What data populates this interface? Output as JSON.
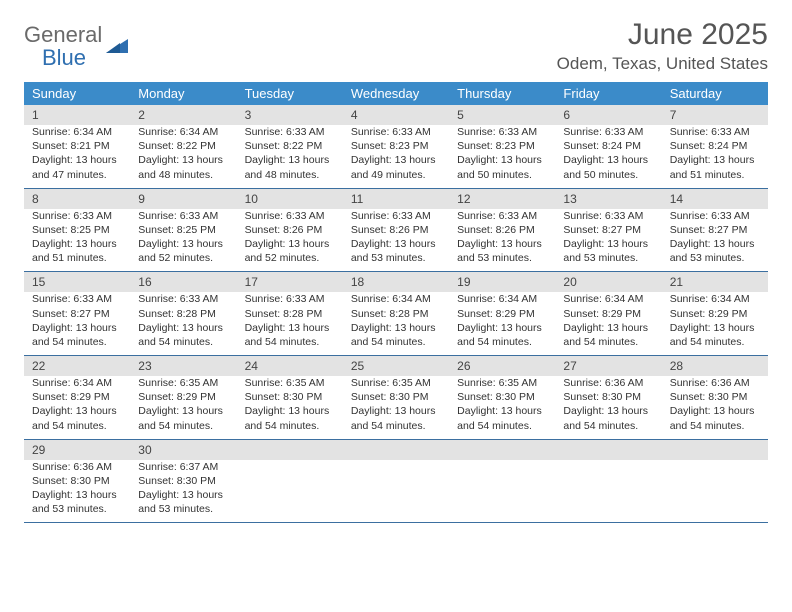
{
  "brand": {
    "word1": "General",
    "word2": "Blue"
  },
  "title": "June 2025",
  "location": "Odem, Texas, United States",
  "colors": {
    "header_bg": "#3b8bc9",
    "header_text": "#ffffff",
    "daynum_bg": "#e3e3e3",
    "week_border": "#3b6fa0",
    "body_text": "#333333",
    "title_text": "#555555",
    "logo_gray": "#6a6a6a",
    "logo_blue": "#2f6fb0"
  },
  "daysOfWeek": [
    "Sunday",
    "Monday",
    "Tuesday",
    "Wednesday",
    "Thursday",
    "Friday",
    "Saturday"
  ],
  "weeks": [
    [
      {
        "n": "1",
        "sr": "6:34 AM",
        "ss": "8:21 PM",
        "dl": "13 hours and 47 minutes."
      },
      {
        "n": "2",
        "sr": "6:34 AM",
        "ss": "8:22 PM",
        "dl": "13 hours and 48 minutes."
      },
      {
        "n": "3",
        "sr": "6:33 AM",
        "ss": "8:22 PM",
        "dl": "13 hours and 48 minutes."
      },
      {
        "n": "4",
        "sr": "6:33 AM",
        "ss": "8:23 PM",
        "dl": "13 hours and 49 minutes."
      },
      {
        "n": "5",
        "sr": "6:33 AM",
        "ss": "8:23 PM",
        "dl": "13 hours and 50 minutes."
      },
      {
        "n": "6",
        "sr": "6:33 AM",
        "ss": "8:24 PM",
        "dl": "13 hours and 50 minutes."
      },
      {
        "n": "7",
        "sr": "6:33 AM",
        "ss": "8:24 PM",
        "dl": "13 hours and 51 minutes."
      }
    ],
    [
      {
        "n": "8",
        "sr": "6:33 AM",
        "ss": "8:25 PM",
        "dl": "13 hours and 51 minutes."
      },
      {
        "n": "9",
        "sr": "6:33 AM",
        "ss": "8:25 PM",
        "dl": "13 hours and 52 minutes."
      },
      {
        "n": "10",
        "sr": "6:33 AM",
        "ss": "8:26 PM",
        "dl": "13 hours and 52 minutes."
      },
      {
        "n": "11",
        "sr": "6:33 AM",
        "ss": "8:26 PM",
        "dl": "13 hours and 53 minutes."
      },
      {
        "n": "12",
        "sr": "6:33 AM",
        "ss": "8:26 PM",
        "dl": "13 hours and 53 minutes."
      },
      {
        "n": "13",
        "sr": "6:33 AM",
        "ss": "8:27 PM",
        "dl": "13 hours and 53 minutes."
      },
      {
        "n": "14",
        "sr": "6:33 AM",
        "ss": "8:27 PM",
        "dl": "13 hours and 53 minutes."
      }
    ],
    [
      {
        "n": "15",
        "sr": "6:33 AM",
        "ss": "8:27 PM",
        "dl": "13 hours and 54 minutes."
      },
      {
        "n": "16",
        "sr": "6:33 AM",
        "ss": "8:28 PM",
        "dl": "13 hours and 54 minutes."
      },
      {
        "n": "17",
        "sr": "6:33 AM",
        "ss": "8:28 PM",
        "dl": "13 hours and 54 minutes."
      },
      {
        "n": "18",
        "sr": "6:34 AM",
        "ss": "8:28 PM",
        "dl": "13 hours and 54 minutes."
      },
      {
        "n": "19",
        "sr": "6:34 AM",
        "ss": "8:29 PM",
        "dl": "13 hours and 54 minutes."
      },
      {
        "n": "20",
        "sr": "6:34 AM",
        "ss": "8:29 PM",
        "dl": "13 hours and 54 minutes."
      },
      {
        "n": "21",
        "sr": "6:34 AM",
        "ss": "8:29 PM",
        "dl": "13 hours and 54 minutes."
      }
    ],
    [
      {
        "n": "22",
        "sr": "6:34 AM",
        "ss": "8:29 PM",
        "dl": "13 hours and 54 minutes."
      },
      {
        "n": "23",
        "sr": "6:35 AM",
        "ss": "8:29 PM",
        "dl": "13 hours and 54 minutes."
      },
      {
        "n": "24",
        "sr": "6:35 AM",
        "ss": "8:30 PM",
        "dl": "13 hours and 54 minutes."
      },
      {
        "n": "25",
        "sr": "6:35 AM",
        "ss": "8:30 PM",
        "dl": "13 hours and 54 minutes."
      },
      {
        "n": "26",
        "sr": "6:35 AM",
        "ss": "8:30 PM",
        "dl": "13 hours and 54 minutes."
      },
      {
        "n": "27",
        "sr": "6:36 AM",
        "ss": "8:30 PM",
        "dl": "13 hours and 54 minutes."
      },
      {
        "n": "28",
        "sr": "6:36 AM",
        "ss": "8:30 PM",
        "dl": "13 hours and 54 minutes."
      }
    ],
    [
      {
        "n": "29",
        "sr": "6:36 AM",
        "ss": "8:30 PM",
        "dl": "13 hours and 53 minutes."
      },
      {
        "n": "30",
        "sr": "6:37 AM",
        "ss": "8:30 PM",
        "dl": "13 hours and 53 minutes."
      },
      null,
      null,
      null,
      null,
      null
    ]
  ],
  "labels": {
    "sunrise": "Sunrise:",
    "sunset": "Sunset:",
    "daylight": "Daylight:"
  }
}
